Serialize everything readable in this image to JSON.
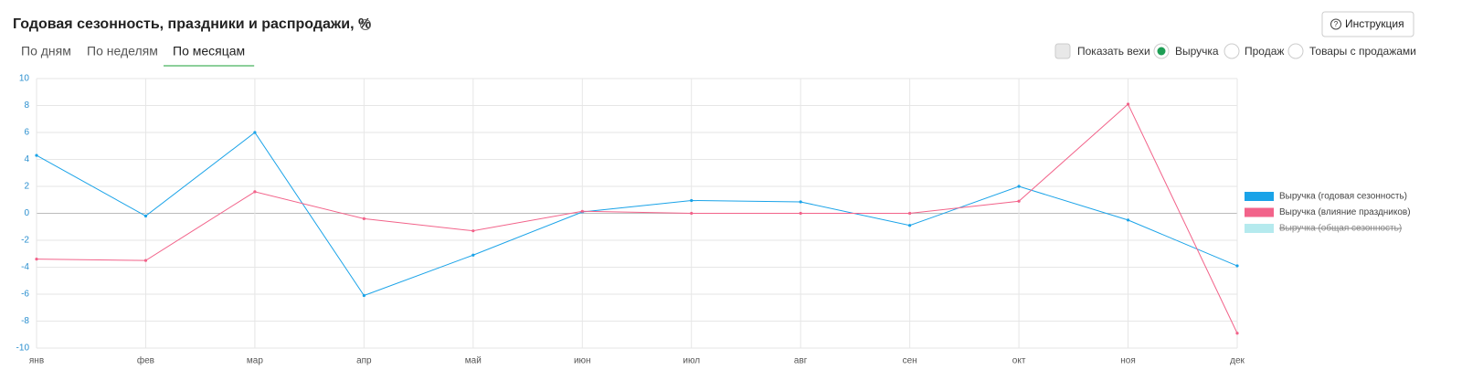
{
  "header": {
    "title": "Годовая сезонность, праздники и распродажи, %",
    "button": "Инструкция"
  },
  "tabs": {
    "items": [
      "По дням",
      "По неделям",
      "По месяцам"
    ],
    "active": 2
  },
  "controls": {
    "checkbox": "Показать вехи",
    "radios": [
      "Выручка",
      "Продаж",
      "Товары с продажами"
    ],
    "selected": 0
  },
  "chart_data": {
    "type": "line",
    "categories": [
      "янв",
      "фев",
      "мар",
      "апр",
      "май",
      "июн",
      "июл",
      "авг",
      "сен",
      "окт",
      "ноя",
      "дек"
    ],
    "series": [
      {
        "name": "Выручка (годовая сезонность)",
        "color": "#1aa3e8",
        "values": [
          4.3,
          -0.2,
          6.0,
          -6.1,
          -3.1,
          0.1,
          0.95,
          0.85,
          -0.9,
          2.0,
          -0.5,
          -3.9
        ]
      },
      {
        "name": "Выручка (влияние праздников)",
        "color": "#f2638a",
        "values": [
          -3.4,
          -3.5,
          1.6,
          -0.4,
          -1.3,
          0.15,
          0,
          0,
          0,
          0.9,
          8.1,
          -8.9
        ]
      },
      {
        "name": "Выручка (общая сезонность)",
        "color": "#b5eaee",
        "hidden": true,
        "values": [
          null,
          null,
          null,
          null,
          null,
          null,
          null,
          null,
          null,
          null,
          null,
          null
        ]
      }
    ],
    "ylim": [
      -10,
      10
    ],
    "yticks": [
      -10,
      -8,
      -6,
      -4,
      -2,
      0,
      2,
      4,
      6,
      8,
      10
    ],
    "grid": true,
    "legend": "right"
  }
}
